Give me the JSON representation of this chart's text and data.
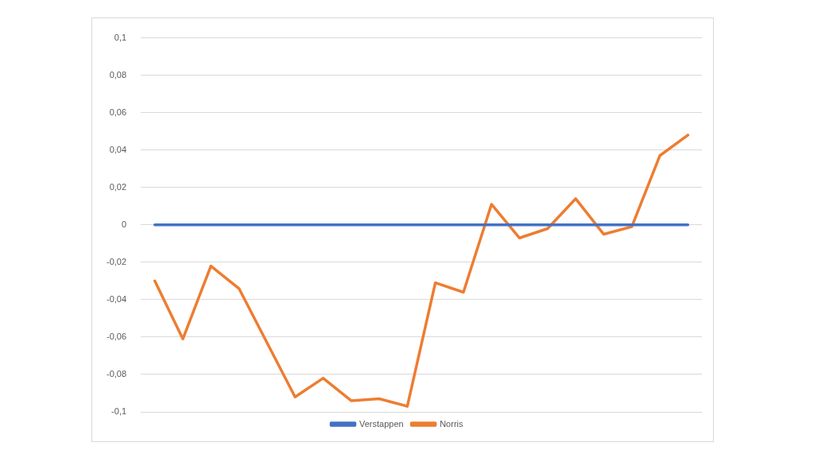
{
  "chart_data": {
    "type": "line",
    "categories": [
      null,
      null,
      null,
      null,
      null,
      null,
      null,
      null,
      null,
      null,
      null,
      null,
      null,
      null,
      null,
      null,
      null,
      null,
      null,
      null
    ],
    "series": [
      {
        "name": "Verstappen",
        "color": "#4472c4",
        "values": [
          0,
          0,
          0,
          0,
          0,
          0,
          0,
          0,
          0,
          0,
          0,
          0,
          0,
          0,
          0,
          0,
          0,
          0,
          0,
          0
        ]
      },
      {
        "name": "Norris",
        "color": "#ed7d31",
        "values": [
          -0.03,
          -0.061,
          -0.022,
          -0.034,
          -0.063,
          -0.092,
          -0.082,
          -0.094,
          -0.093,
          -0.097,
          -0.031,
          -0.036,
          0.011,
          -0.007,
          -0.002,
          0.014,
          -0.005,
          -0.001,
          0.037,
          0.048
        ]
      }
    ],
    "ylim": [
      -0.1,
      0.1
    ],
    "yticks": [
      {
        "value": -0.1,
        "label": "-0,1"
      },
      {
        "value": -0.08,
        "label": "-0,08"
      },
      {
        "value": -0.06,
        "label": "-0,06"
      },
      {
        "value": -0.04,
        "label": "-0,04"
      },
      {
        "value": -0.02,
        "label": "-0,02"
      },
      0,
      {
        "value": 0.02,
        "label": "0,02"
      },
      {
        "value": 0.04,
        "label": "0,04"
      },
      {
        "value": 0.06,
        "label": "0,06"
      },
      {
        "value": 0.08,
        "label": "0,08"
      },
      {
        "value": 0.1,
        "label": "0,1"
      }
    ],
    "grid": "y",
    "legend": "bottom",
    "marker": "none",
    "tick_labels": "y"
  }
}
